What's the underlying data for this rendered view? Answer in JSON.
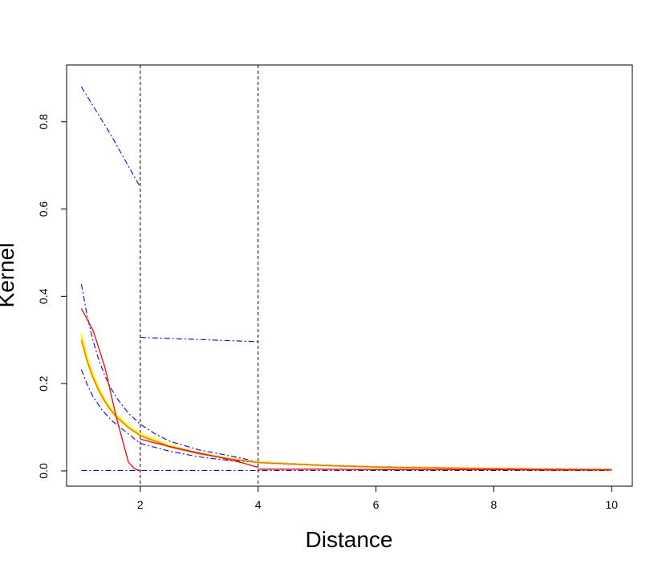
{
  "chart_data": {
    "type": "line",
    "title": "",
    "xlabel": "Distance",
    "ylabel": "Kernel",
    "xlim": [
      0.75,
      10.35
    ],
    "ylim": [
      -0.035,
      0.93
    ],
    "x_ticks": [
      2,
      4,
      6,
      8,
      10
    ],
    "x_tick_labels": [
      "2",
      "4",
      "6",
      "8",
      "10"
    ],
    "y_ticks": [
      0.0,
      0.2,
      0.4,
      0.6,
      0.8
    ],
    "y_tick_labels": [
      "0.0",
      "0.2",
      "0.4",
      "0.6",
      "0.8"
    ],
    "grid": false,
    "legend": "none",
    "vlines": [
      2,
      4
    ],
    "series": [
      {
        "color": "#0000ff",
        "style": "dashdot",
        "width": 1.1,
        "points": [
          [
            1.0,
            0.88
          ],
          [
            1.5,
            0.77
          ],
          [
            2.0,
            0.65
          ]
        ]
      },
      {
        "color": "#0000ff",
        "style": "dashdot",
        "width": 1.1,
        "points": [
          [
            2.0,
            0.306
          ],
          [
            3.0,
            0.301
          ],
          [
            4.0,
            0.296
          ]
        ]
      },
      {
        "color": "#0000ff",
        "style": "dashdot",
        "width": 1.1,
        "points": [
          [
            1.0,
            0.428
          ],
          [
            1.1,
            0.355
          ],
          [
            1.2,
            0.298
          ],
          [
            1.3,
            0.253
          ],
          [
            1.4,
            0.218
          ],
          [
            1.5,
            0.19
          ],
          [
            1.6,
            0.167
          ],
          [
            1.8,
            0.132
          ],
          [
            2.0,
            0.107
          ],
          [
            2.25,
            0.085
          ],
          [
            2.5,
            0.068
          ],
          [
            3.0,
            0.048
          ],
          [
            3.5,
            0.035
          ],
          [
            4.0,
            0.021
          ],
          [
            5.0,
            0.014
          ],
          [
            6.0,
            0.01
          ],
          [
            7.0,
            0.008
          ],
          [
            8.0,
            0.006
          ],
          [
            9.0,
            0.005
          ],
          [
            10.0,
            0.004
          ]
        ]
      },
      {
        "color": "#0000ff",
        "style": "dashdot",
        "width": 1.1,
        "points": [
          [
            1.0,
            0.232
          ],
          [
            1.1,
            0.198
          ],
          [
            1.2,
            0.17
          ],
          [
            1.35,
            0.14
          ],
          [
            1.5,
            0.117
          ],
          [
            1.75,
            0.09
          ],
          [
            2.0,
            0.063
          ],
          [
            2.5,
            0.045
          ],
          [
            3.0,
            0.032
          ],
          [
            3.5,
            0.024
          ],
          [
            4.0,
            0.02
          ],
          [
            5.0,
            0.013
          ],
          [
            6.0,
            0.009
          ],
          [
            7.0,
            0.007
          ],
          [
            8.0,
            0.005
          ],
          [
            9.0,
            0.004
          ],
          [
            10.0,
            0.003
          ]
        ]
      },
      {
        "color": "#0000ff",
        "style": "dashdot",
        "width": 1.1,
        "points": [
          [
            1.0,
            0.001
          ],
          [
            2.0,
            0.001
          ],
          [
            4.0,
            0.001
          ],
          [
            6.0,
            0.001
          ],
          [
            8.0,
            0.001
          ],
          [
            10.0,
            0.001
          ]
        ]
      },
      {
        "color": "#ffff00",
        "style": "solid",
        "width": 2.2,
        "points": [
          [
            1.0,
            0.315
          ],
          [
            1.1,
            0.262
          ],
          [
            1.2,
            0.222
          ],
          [
            1.3,
            0.19
          ],
          [
            1.4,
            0.165
          ],
          [
            1.5,
            0.144
          ],
          [
            1.6,
            0.128
          ],
          [
            1.8,
            0.103
          ],
          [
            2.0,
            0.085
          ],
          [
            2.5,
            0.058
          ],
          [
            3.0,
            0.041
          ],
          [
            3.5,
            0.029
          ],
          [
            4.0,
            0.02
          ],
          [
            5.0,
            0.013
          ],
          [
            6.0,
            0.009
          ],
          [
            7.0,
            0.007
          ],
          [
            8.0,
            0.005
          ],
          [
            9.0,
            0.004
          ],
          [
            10.0,
            0.003
          ]
        ]
      },
      {
        "color": "#ff6600",
        "style": "solid",
        "width": 1.5,
        "points": [
          [
            1.0,
            0.3
          ],
          [
            1.1,
            0.251
          ],
          [
            1.2,
            0.213
          ],
          [
            1.3,
            0.183
          ],
          [
            1.4,
            0.159
          ],
          [
            1.5,
            0.139
          ],
          [
            1.6,
            0.123
          ],
          [
            1.8,
            0.099
          ],
          [
            2.0,
            0.081
          ],
          [
            2.5,
            0.055
          ],
          [
            3.0,
            0.039
          ],
          [
            3.5,
            0.028
          ],
          [
            4.0,
            0.019
          ],
          [
            5.0,
            0.013
          ],
          [
            6.0,
            0.009
          ],
          [
            7.0,
            0.007
          ],
          [
            8.0,
            0.005
          ],
          [
            9.0,
            0.004
          ],
          [
            10.0,
            0.003
          ]
        ]
      },
      {
        "color": "#ff0000",
        "style": "solid",
        "width": 1.3,
        "points": [
          [
            1.0,
            0.372
          ],
          [
            1.2,
            0.322
          ],
          [
            1.4,
            0.238
          ],
          [
            1.5,
            0.178
          ],
          [
            1.6,
            0.12
          ],
          [
            1.7,
            0.07
          ],
          [
            1.8,
            0.02
          ],
          [
            1.9,
            0.005
          ],
          [
            2.0,
            0.0
          ]
        ]
      },
      {
        "color": "#ff0000",
        "style": "solid",
        "width": 1.3,
        "points": [
          [
            2.0,
            0.073
          ],
          [
            2.25,
            0.064
          ],
          [
            2.5,
            0.056
          ],
          [
            2.75,
            0.048
          ],
          [
            3.0,
            0.041
          ],
          [
            3.25,
            0.034
          ],
          [
            3.5,
            0.026
          ],
          [
            3.75,
            0.018
          ],
          [
            4.0,
            0.008
          ]
        ]
      },
      {
        "color": "#ff0000",
        "style": "solid",
        "width": 1.3,
        "points": [
          [
            4.0,
            0.004
          ],
          [
            5.0,
            0.004
          ],
          [
            6.0,
            0.003
          ],
          [
            7.0,
            0.003
          ],
          [
            8.0,
            0.003
          ],
          [
            9.0,
            0.002
          ],
          [
            10.0,
            0.002
          ]
        ]
      }
    ]
  }
}
